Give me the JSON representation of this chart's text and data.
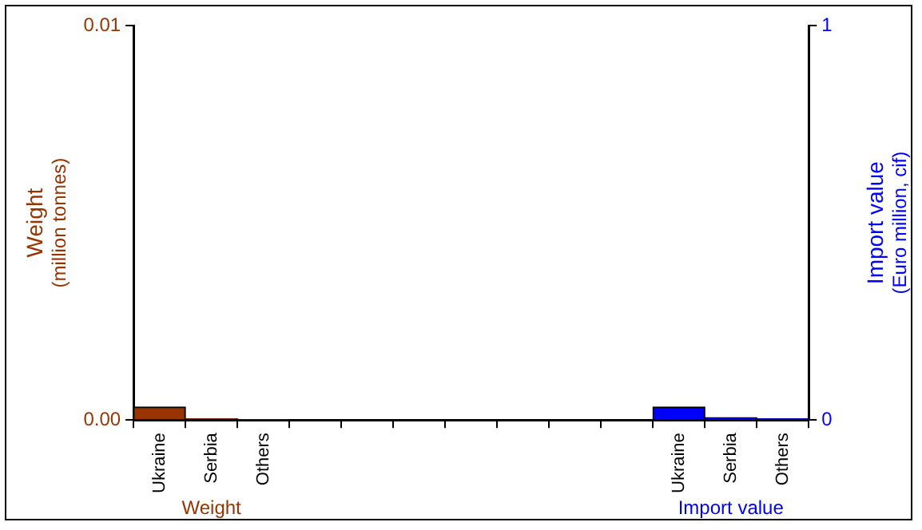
{
  "chart_data": {
    "type": "bar",
    "ylabel": "Weight\n(million tonnes)",
    "y2label": "Import value\n(Euro million, cif)",
    "categories": [
      "Ukraine",
      "Serbia",
      "Others",
      null,
      null,
      null,
      null,
      null,
      null,
      null,
      "Ukraine",
      "Serbia",
      "Others"
    ],
    "series": [
      {
        "name": "Weight",
        "color": "#993300",
        "values": [
          0.00033,
          3e-05,
          2e-05,
          null,
          null,
          null,
          null,
          null,
          null,
          null,
          null,
          null,
          null
        ]
      },
      {
        "name": "Import value",
        "axis": "y2",
        "color": "#0000ff",
        "values": [
          null,
          null,
          null,
          null,
          null,
          null,
          null,
          null,
          null,
          null,
          0.033,
          0.006,
          0.003
        ]
      }
    ],
    "ylim": [
      0,
      0.01
    ],
    "yticks": [
      {
        "value": 0,
        "label": "0.00"
      },
      {
        "value": 0.01,
        "label": "0.01"
      }
    ],
    "y2lim": [
      0,
      1
    ],
    "y2ticks": [
      0,
      1
    ],
    "legend": false
  }
}
